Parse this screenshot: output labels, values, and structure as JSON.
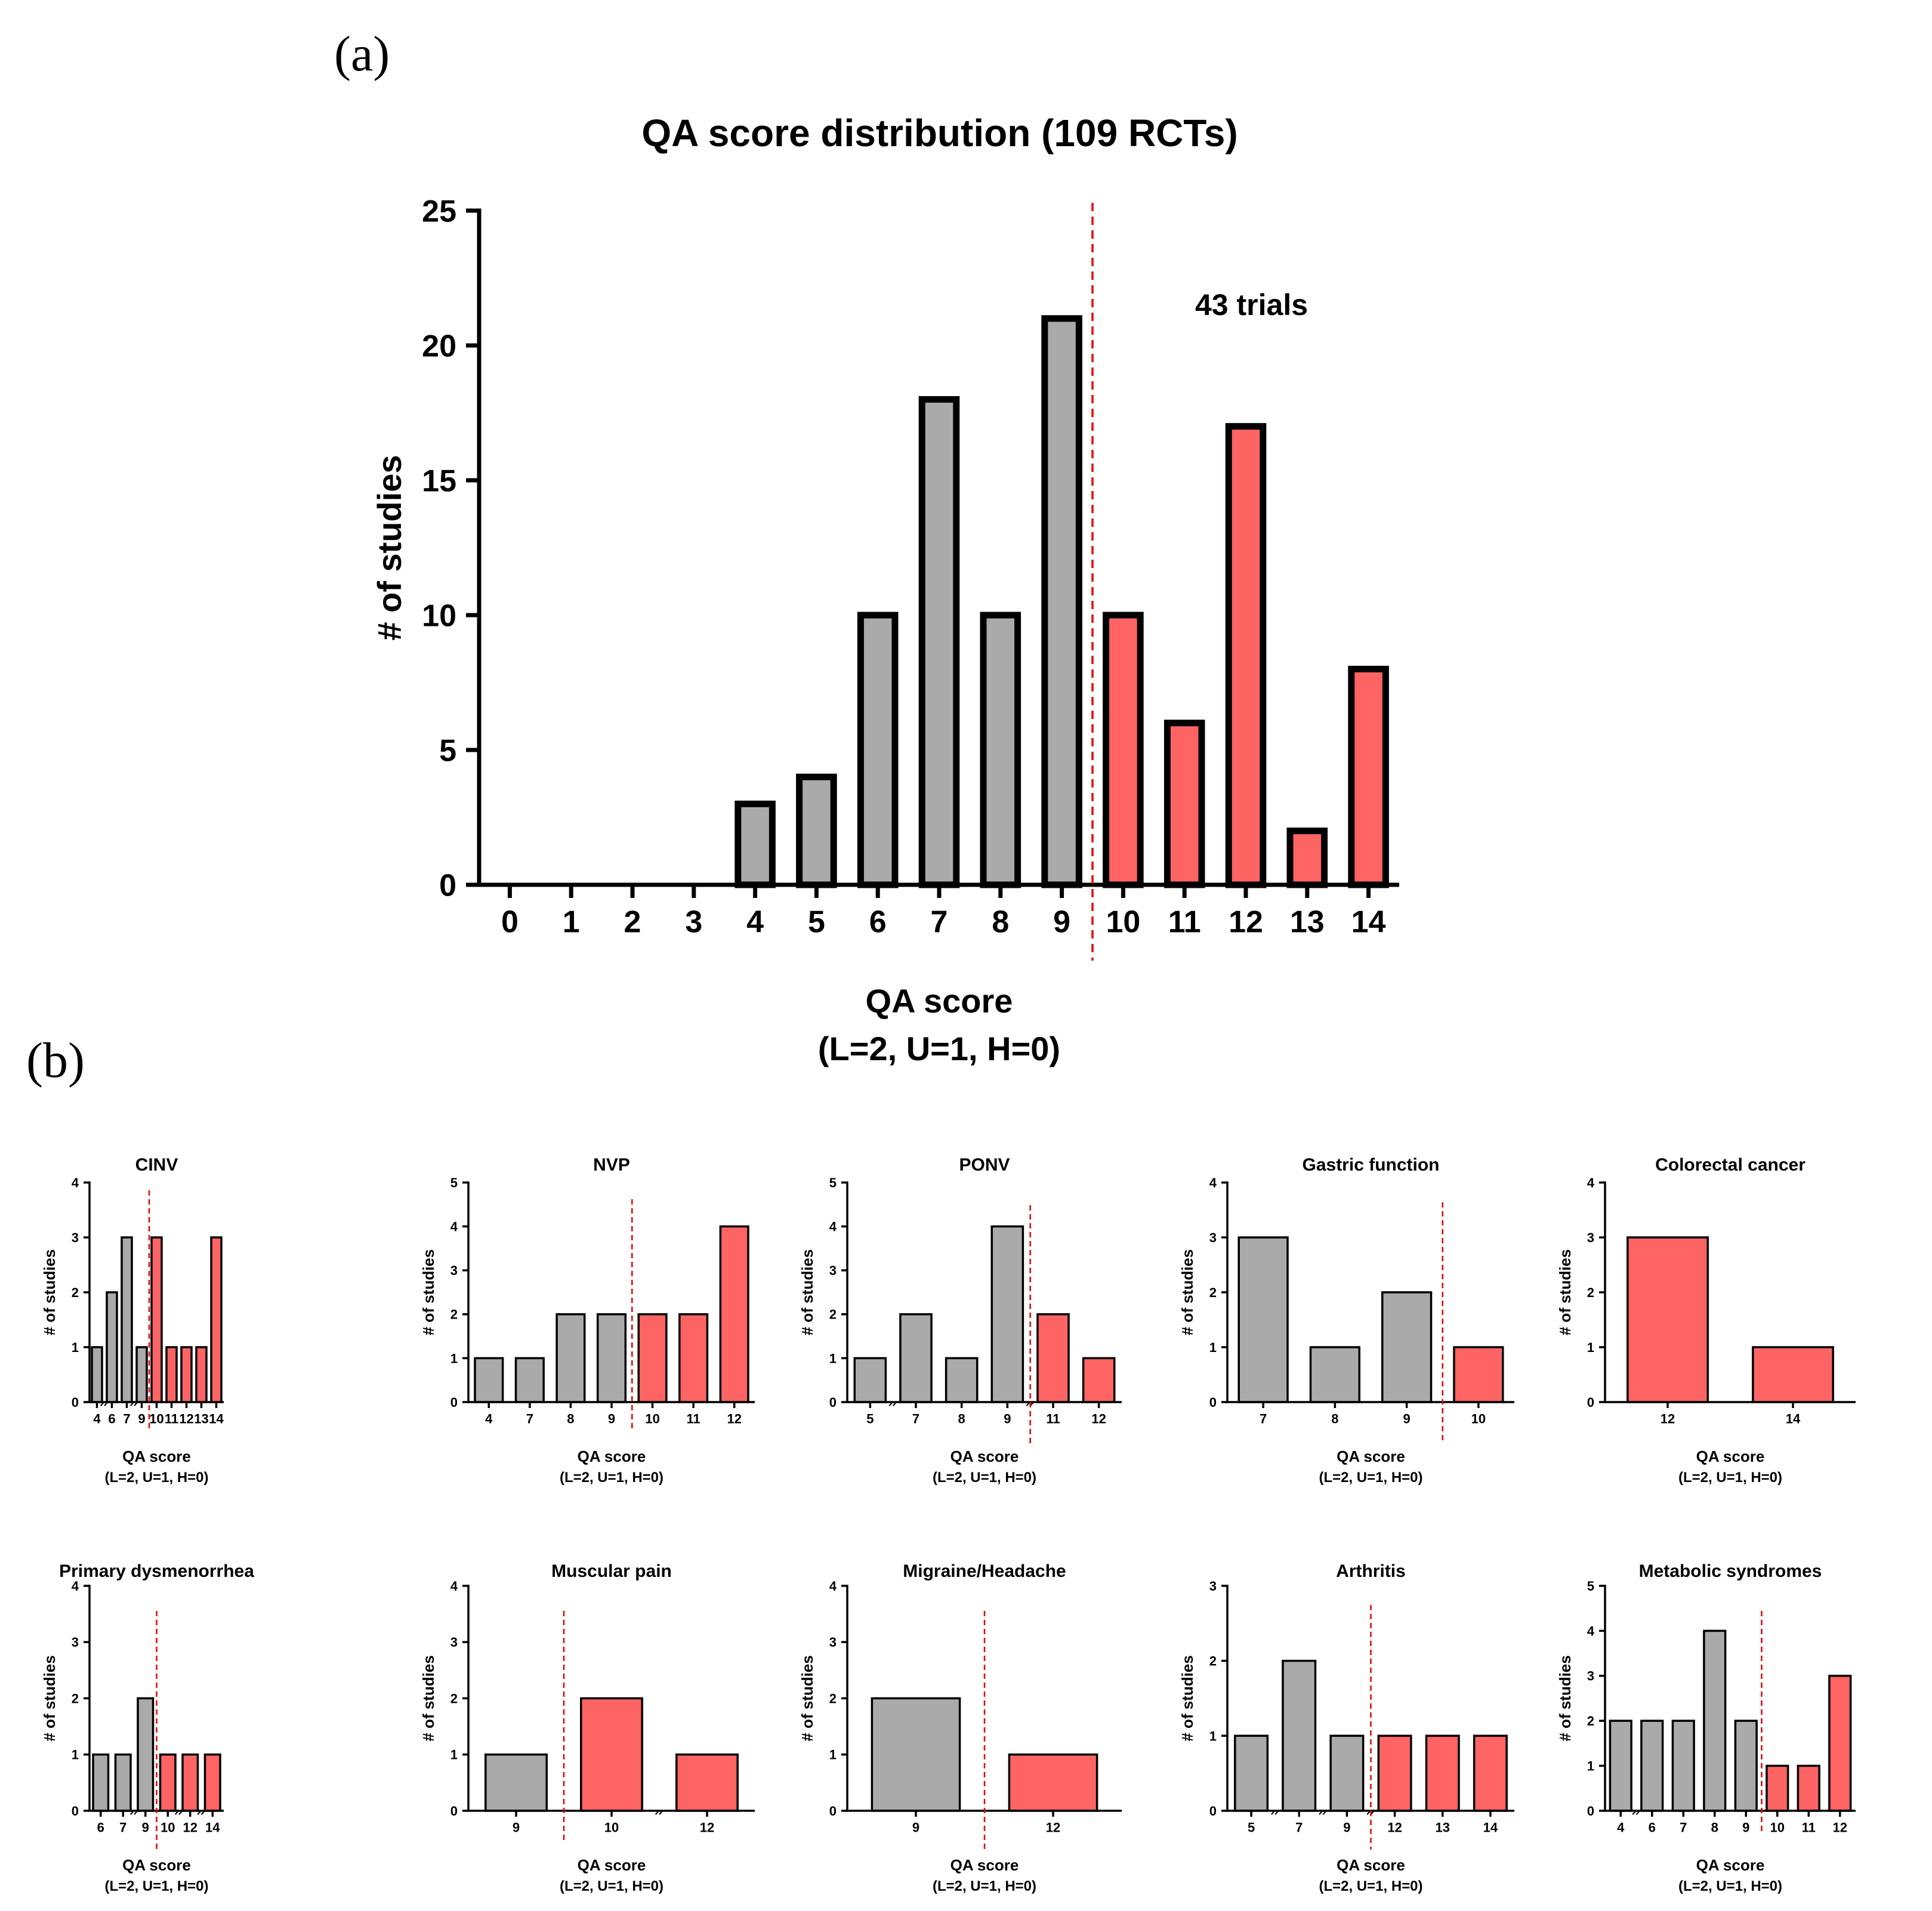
{
  "panel_labels": {
    "a": "(a)",
    "b": "(b)"
  },
  "colors": {
    "low": "#aaaaaa",
    "high": "#ff6464",
    "cutline": "#e60000",
    "stroke": "#000000"
  },
  "chart_data": [
    {
      "id": "main",
      "type": "bar",
      "title": "QA score distribution (109 RCTs)",
      "xlabel": "QA score",
      "xlabel2": "(L=2, U=1, H=0)",
      "ylabel": "# of studies",
      "ylim": [
        0,
        25
      ],
      "yticks": [
        0,
        5,
        10,
        15,
        20,
        25
      ],
      "categories": [
        "0",
        "1",
        "2",
        "3",
        "4",
        "5",
        "6",
        "7",
        "8",
        "9",
        "10",
        "11",
        "12",
        "13",
        "14"
      ],
      "values": [
        0,
        0,
        0,
        0,
        3,
        4,
        10,
        18,
        10,
        21,
        10,
        6,
        17,
        2,
        8
      ],
      "high_from_index": 10,
      "annotation": "43 trials"
    },
    {
      "id": "cinv",
      "type": "bar",
      "title": "CINV",
      "xlabel": "QA score",
      "xlabel2": "(L=2, U=1, H=0)",
      "ylabel": "# of studies",
      "ylim": [
        0,
        4
      ],
      "yticks": [
        0,
        1,
        2,
        3,
        4
      ],
      "categories": [
        "4",
        "6",
        "7",
        "9",
        "10",
        "11",
        "12",
        "13",
        "14"
      ],
      "values": [
        1,
        2,
        3,
        1,
        3,
        1,
        1,
        1,
        3
      ],
      "high_from_index": 4,
      "breaks_after": [
        0,
        2
      ]
    },
    {
      "id": "nvp",
      "type": "bar",
      "title": "NVP",
      "xlabel": "QA score",
      "xlabel2": "(L=2, U=1, H=0)",
      "ylabel": "# of studies",
      "ylim": [
        0,
        5
      ],
      "yticks": [
        0,
        1,
        2,
        3,
        4,
        5
      ],
      "categories": [
        "4",
        "7",
        "8",
        "9",
        "10",
        "11",
        "12"
      ],
      "values": [
        1,
        1,
        2,
        2,
        2,
        2,
        4
      ],
      "high_from_index": 4,
      "breaks_after": []
    },
    {
      "id": "ponv",
      "type": "bar",
      "title": "PONV",
      "xlabel": "QA score",
      "xlabel2": "(L=2, U=1, H=0)",
      "ylabel": "# of studies",
      "ylim": [
        0,
        5
      ],
      "yticks": [
        0,
        1,
        2,
        3,
        4,
        5
      ],
      "categories": [
        "5",
        "7",
        "8",
        "9",
        "11",
        "12"
      ],
      "values": [
        1,
        2,
        1,
        4,
        2,
        1
      ],
      "high_from_index": 4,
      "breaks_after": [
        0,
        3
      ]
    },
    {
      "id": "gastric",
      "type": "bar",
      "title": "Gastric function",
      "xlabel": "QA score",
      "xlabel2": "(L=2, U=1, H=0)",
      "ylabel": "# of studies",
      "ylim": [
        0,
        4
      ],
      "yticks": [
        0,
        1,
        2,
        3,
        4
      ],
      "categories": [
        "7",
        "8",
        "9",
        "10"
      ],
      "values": [
        3,
        1,
        2,
        1
      ],
      "high_from_index": 3,
      "breaks_after": []
    },
    {
      "id": "colorectal",
      "type": "bar",
      "title": "Colorectal cancer",
      "xlabel": "QA score",
      "xlabel2": "(L=2, U=1, H=0)",
      "ylabel": "# of studies",
      "ylim": [
        0,
        4
      ],
      "yticks": [
        0,
        1,
        2,
        3,
        4
      ],
      "categories": [
        "12",
        "14"
      ],
      "values": [
        3,
        1
      ],
      "high_from_index": 0,
      "breaks_after": [],
      "no_cutline": true
    },
    {
      "id": "dysmenorrhea",
      "type": "bar",
      "title": "Primary dysmenorrhea",
      "xlabel": "QA score",
      "xlabel2": "(L=2, U=1, H=0)",
      "ylabel": "# of studies",
      "ylim": [
        0,
        4
      ],
      "yticks": [
        0,
        1,
        2,
        3,
        4
      ],
      "categories": [
        "6",
        "7",
        "9",
        "10",
        "12",
        "14"
      ],
      "values": [
        1,
        1,
        2,
        1,
        1,
        1
      ],
      "high_from_index": 3,
      "breaks_after": [
        1,
        3,
        4
      ]
    },
    {
      "id": "muscular",
      "type": "bar",
      "title": "Muscular pain",
      "xlabel": "QA score",
      "xlabel2": "(L=2, U=1, H=0)",
      "ylabel": "# of studies",
      "ylim": [
        0,
        4
      ],
      "yticks": [
        0,
        1,
        2,
        3,
        4
      ],
      "categories": [
        "9",
        "10",
        "12"
      ],
      "values": [
        1,
        2,
        1
      ],
      "high_from_index": 1,
      "breaks_after": [
        1
      ]
    },
    {
      "id": "migraine",
      "type": "bar",
      "title": "Migraine/Headache",
      "xlabel": "QA score",
      "xlabel2": "(L=2, U=1, H=0)",
      "ylabel": "# of studies",
      "ylim": [
        0,
        4
      ],
      "yticks": [
        0,
        1,
        2,
        3,
        4
      ],
      "categories": [
        "9",
        "12"
      ],
      "values": [
        2,
        1
      ],
      "high_from_index": 1,
      "breaks_after": []
    },
    {
      "id": "arthritis",
      "type": "bar",
      "title": "Arthritis",
      "xlabel": "QA score",
      "xlabel2": "(L=2, U=1, H=0)",
      "ylabel": "# of studies",
      "ylim": [
        0,
        3
      ],
      "yticks": [
        0,
        1,
        2,
        3
      ],
      "categories": [
        "5",
        "7",
        "9",
        "12",
        "13",
        "14"
      ],
      "values": [
        1,
        2,
        1,
        1,
        1,
        1
      ],
      "high_from_index": 3,
      "breaks_after": [
        0,
        1,
        2
      ]
    },
    {
      "id": "metabolic",
      "type": "bar",
      "title": "Metabolic syndromes",
      "xlabel": "QA score",
      "xlabel2": "(L=2, U=1, H=0)",
      "ylabel": "# of studies",
      "ylim": [
        0,
        5
      ],
      "yticks": [
        0,
        1,
        2,
        3,
        4,
        5
      ],
      "categories": [
        "4",
        "6",
        "7",
        "8",
        "9",
        "10",
        "11",
        "12"
      ],
      "values": [
        2,
        2,
        2,
        4,
        2,
        1,
        1,
        3
      ],
      "high_from_index": 5,
      "breaks_after": [
        0
      ]
    }
  ]
}
